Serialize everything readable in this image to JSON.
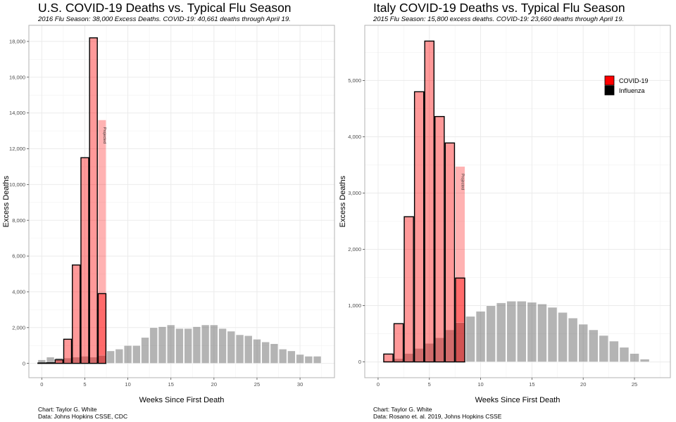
{
  "chart_data": [
    {
      "type": "bar",
      "title": "U.S. COVID-19 Deaths vs. Typical Flu Season",
      "subtitle": "2016 Flu Season: 38,000 Excess Deaths. COVID-19: 40,661 deaths through April 19.",
      "xlabel": "Weeks Since First Death",
      "ylabel": "Excess Deaths",
      "xlim": [
        -1.5,
        34
      ],
      "ylim": [
        -800,
        18900
      ],
      "xticks": [
        0,
        5,
        10,
        15,
        20,
        25,
        30
      ],
      "xtick_labels": [
        "0",
        "5",
        "10",
        "15",
        "20",
        "25",
        "30"
      ],
      "yticks": [
        0,
        2000,
        4000,
        6000,
        8000,
        10000,
        12000,
        14000,
        16000,
        18000
      ],
      "ytick_labels": [
        "0",
        "2,000",
        "4,000",
        "6,000",
        "8,000",
        "10,000",
        "12,000",
        "14,000",
        "16,000",
        "18,000"
      ],
      "grid": true,
      "series": [
        {
          "name": "Influenza",
          "color": "#999999",
          "x": [
            0,
            1,
            2,
            3,
            4,
            5,
            6,
            7,
            8,
            9,
            10,
            11,
            12,
            13,
            14,
            15,
            16,
            17,
            18,
            19,
            20,
            21,
            22,
            23,
            24,
            25,
            26,
            27,
            28,
            29,
            30,
            31,
            32
          ],
          "values": [
            200,
            350,
            300,
            300,
            350,
            400,
            350,
            450,
            700,
            800,
            1000,
            1000,
            1450,
            2000,
            2050,
            2150,
            1950,
            1950,
            2050,
            2150,
            2150,
            1950,
            1800,
            1600,
            1550,
            1350,
            1200,
            1100,
            800,
            700,
            500,
            400,
            400
          ]
        },
        {
          "name": "COVID-19",
          "color": "#ff0000",
          "x": [
            0,
            1,
            2,
            3,
            4,
            5,
            6,
            7
          ],
          "values": [
            20,
            30,
            200,
            1350,
            5500,
            11500,
            18200,
            3900
          ]
        },
        {
          "name": "Projected",
          "color": "#ff0000",
          "x": [
            7
          ],
          "values": [
            13600
          ],
          "label": "Projected"
        }
      ],
      "caption_lines": [
        "Chart: Taylor G. White",
        "Data: Johns Hopkins CSSE, CDC"
      ]
    },
    {
      "type": "bar",
      "title": "Italy COVID-19 Deaths vs. Typical Flu Season",
      "subtitle": "2015 Flu Season: 15,800 excess deaths. COVID-19: 23,660 deaths through April 19.",
      "xlabel": "Weeks Since First Death",
      "ylabel": "Excess Deaths",
      "xlim": [
        -1.3,
        28.5
      ],
      "ylim": [
        -280,
        5980
      ],
      "xticks": [
        0,
        5,
        10,
        15,
        20,
        25
      ],
      "xtick_labels": [
        "0",
        "5",
        "10",
        "15",
        "20",
        "25"
      ],
      "yticks": [
        0,
        1000,
        2000,
        3000,
        4000,
        5000
      ],
      "ytick_labels": [
        "0",
        "1,000",
        "2,000",
        "3,000",
        "4,000",
        "5,000"
      ],
      "grid": true,
      "legend": {
        "placement": "top-right",
        "entries": [
          {
            "label": "COVID-19",
            "color": "#ff0000"
          },
          {
            "label": "Influenza",
            "color": "#000000"
          }
        ]
      },
      "series": [
        {
          "name": "Influenza",
          "color": "#999999",
          "x": [
            1,
            2,
            3,
            4,
            5,
            6,
            7,
            8,
            9,
            10,
            11,
            12,
            13,
            14,
            15,
            16,
            17,
            18,
            19,
            20,
            21,
            22,
            23,
            24,
            25,
            26
          ],
          "values": [
            20,
            60,
            150,
            240,
            330,
            430,
            570,
            700,
            810,
            900,
            1000,
            1050,
            1080,
            1080,
            1060,
            1030,
            970,
            880,
            780,
            670,
            570,
            470,
            370,
            260,
            150,
            50
          ]
        },
        {
          "name": "COVID-19",
          "color": "#ff0000",
          "x": [
            1,
            2,
            3,
            4,
            5,
            6,
            7,
            8
          ],
          "values": [
            140,
            680,
            2580,
            4800,
            5700,
            4360,
            3890,
            1490
          ]
        },
        {
          "name": "Projected",
          "color": "#ff0000",
          "x": [
            8
          ],
          "values": [
            3470
          ],
          "label": "Projected"
        }
      ],
      "caption_lines": [
        "Chart: Taylor G. White",
        "Data: Rosano et. al. 2019, Johns Hopkins CSSE"
      ]
    }
  ]
}
